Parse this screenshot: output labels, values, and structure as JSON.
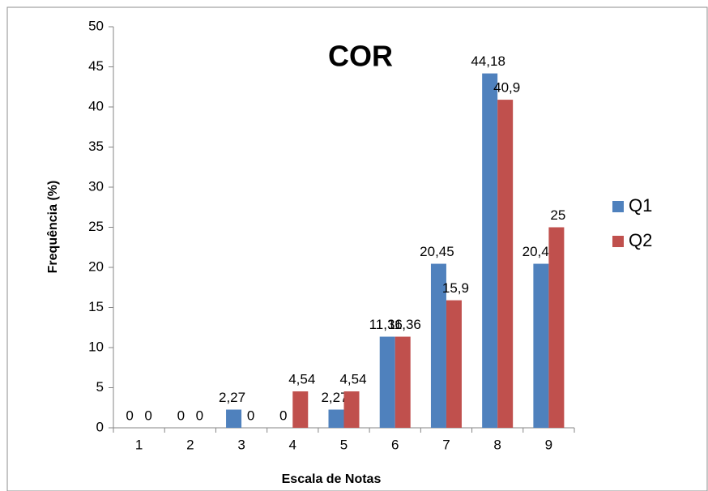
{
  "chart_data": {
    "type": "bar",
    "title": "COR",
    "x_label": "Escala de Notas",
    "y_label": "Frequência (%)",
    "categories": [
      "1",
      "2",
      "3",
      "4",
      "5",
      "6",
      "7",
      "8",
      "9"
    ],
    "series": [
      {
        "name": "Q1",
        "color": "#4f81bd",
        "values": [
          0,
          0,
          2.27,
          0,
          2.27,
          11.36,
          20.45,
          44.18,
          20.45
        ],
        "value_labels": [
          "0",
          "0",
          "2,27",
          "0",
          "2,27",
          "11,36",
          "20,45",
          "44,18",
          "20,45"
        ]
      },
      {
        "name": "Q2",
        "color": "#c0504d",
        "values": [
          0,
          0,
          0,
          4.54,
          4.54,
          11.36,
          15.9,
          40.9,
          25
        ],
        "value_labels": [
          "0",
          "0",
          "0",
          "4,54",
          "4,54",
          "11,36",
          "15,9",
          "40,9",
          "25"
        ]
      }
    ],
    "ylim": [
      0,
      50
    ],
    "yticks": [
      0,
      5,
      10,
      15,
      20,
      25,
      30,
      35,
      40,
      45,
      50
    ],
    "grid": false,
    "legend": "right"
  }
}
